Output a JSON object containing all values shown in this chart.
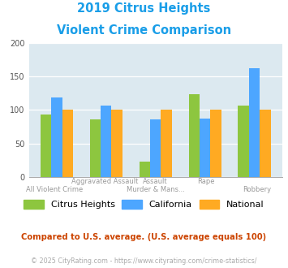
{
  "title_line1": "2019 Citrus Heights",
  "title_line2": "Violent Crime Comparison",
  "title_color": "#1a9ee8",
  "categories": [
    "All Violent Crime",
    "Aggravated Assault",
    "Murder & Mans...",
    "Rape",
    "Robbery"
  ],
  "top_labels": [
    "",
    "Aggravated Assault",
    "Assault",
    "Rape",
    ""
  ],
  "bot_labels": [
    "All Violent Crime",
    "",
    "Murder & Mans...",
    "",
    "Robbery"
  ],
  "citrus_heights": [
    93,
    86,
    23,
    123,
    106
  ],
  "california": [
    118,
    107,
    86,
    87,
    162
  ],
  "national": [
    100,
    100,
    100,
    100,
    100
  ],
  "bar_color_citrus": "#8dc63f",
  "bar_color_california": "#4da6ff",
  "bar_color_national": "#ffaa22",
  "ylim": [
    0,
    200
  ],
  "yticks": [
    0,
    50,
    100,
    150,
    200
  ],
  "plot_bg": "#dce9f0",
  "legend_labels": [
    "Citrus Heights",
    "California",
    "National"
  ],
  "footnote1": "Compared to U.S. average. (U.S. average equals 100)",
  "footnote2": "© 2025 CityRating.com - https://www.cityrating.com/crime-statistics/",
  "footnote1_color": "#cc4400",
  "footnote2_color": "#aaaaaa",
  "xlabel_color": "#999999"
}
